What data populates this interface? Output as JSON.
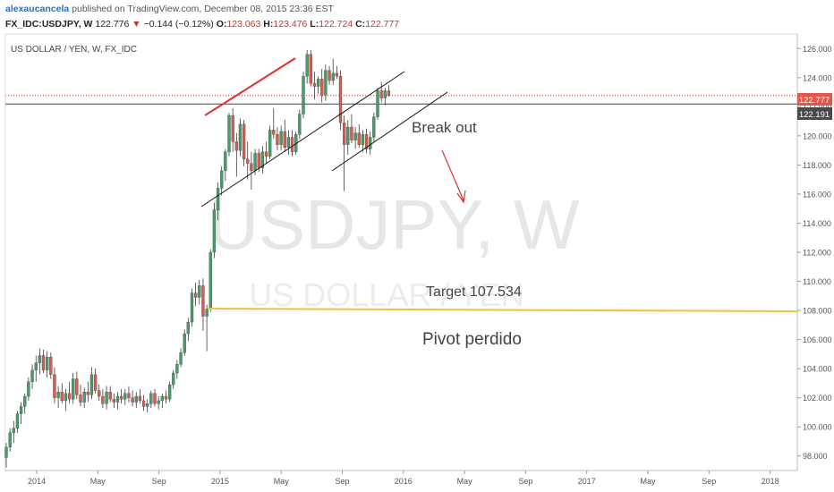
{
  "header": {
    "author": "alexaucancela",
    "published_text": "published on TradingView.com, December 08, 2015 23:36 EST",
    "symbol": "FX_IDC:USDJPY, W",
    "last": "122.776",
    "change_arrow": "▼",
    "change": "−0.144 (−0.12%)",
    "open_label": "O:",
    "open": "123.063",
    "high_label": "H:",
    "high": "123.476",
    "low_label": "L:",
    "low": "122.724",
    "close_label": "C:",
    "close": "122.777"
  },
  "pane_title": "US DOLLAR / YEN, W, FX_IDC",
  "watermark": {
    "symbol": "USDJPY, W",
    "name": "US DOLLAR / YEN"
  },
  "annotations": {
    "breakout": "Break out",
    "target": "Target 107.534",
    "pivot": "Pivot perdido"
  },
  "price_tags": {
    "last": "122.777",
    "reference": "122.191"
  },
  "colors": {
    "up": "#4a9a6a",
    "down": "#d85b52",
    "trendline": "#e0312b",
    "channel": "#111111",
    "target_line": "#f2c23a",
    "last_tag": "#e7544a",
    "reference_tag": "#4a4a4a"
  },
  "chart_data": {
    "type": "candlestick",
    "timeframe": "weekly",
    "y_axis": {
      "min": 97,
      "max": 127,
      "ticks": [
        98,
        100,
        102,
        104,
        106,
        108,
        110,
        112,
        114,
        116,
        118,
        120,
        122,
        124,
        126
      ],
      "tick_labels": [
        "98.000",
        "100.000",
        "102.000",
        "104.000",
        "106.000",
        "108.000",
        "110.000",
        "112.000",
        "114.000",
        "116.000",
        "118.000",
        "120.000",
        "122.000",
        "124.000",
        "126.000"
      ]
    },
    "x_axis": {
      "tick_labels": [
        "2014",
        "May",
        "Sep",
        "2015",
        "May",
        "Sep",
        "2016",
        "May",
        "Sep",
        "2017",
        "May",
        "Sep",
        "2018"
      ]
    },
    "candles": [
      [
        97.9,
        98.9,
        97.2,
        98.6
      ],
      [
        98.6,
        99.9,
        98.3,
        99.6
      ],
      [
        99.6,
        100.4,
        98.9,
        99.9
      ],
      [
        99.9,
        101.1,
        99.6,
        100.9
      ],
      [
        100.9,
        101.7,
        100.2,
        101.4
      ],
      [
        101.4,
        102.3,
        100.9,
        102.1
      ],
      [
        102.1,
        103.4,
        101.8,
        103.1
      ],
      [
        103.1,
        104.3,
        102.6,
        103.9
      ],
      [
        103.9,
        104.9,
        103.1,
        104.4
      ],
      [
        104.4,
        105.4,
        103.6,
        104.9
      ],
      [
        104.9,
        105.3,
        103.7,
        103.9
      ],
      [
        103.9,
        105.2,
        103.4,
        104.8
      ],
      [
        104.8,
        105.1,
        103.3,
        103.6
      ],
      [
        103.6,
        104.1,
        101.6,
        102.0
      ],
      [
        102.0,
        102.8,
        101.3,
        102.4
      ],
      [
        102.4,
        103.0,
        101.6,
        101.8
      ],
      [
        101.8,
        102.6,
        101.1,
        102.3
      ],
      [
        102.3,
        103.1,
        101.6,
        101.9
      ],
      [
        101.9,
        103.7,
        101.6,
        103.3
      ],
      [
        103.3,
        103.8,
        101.9,
        102.2
      ],
      [
        102.2,
        102.9,
        101.4,
        101.7
      ],
      [
        101.7,
        102.7,
        101.3,
        102.4
      ],
      [
        102.4,
        103.1,
        101.7,
        102.2
      ],
      [
        102.2,
        104.1,
        101.9,
        103.6
      ],
      [
        103.6,
        104.0,
        102.3,
        102.5
      ],
      [
        102.5,
        102.9,
        101.8,
        102.1
      ],
      [
        102.1,
        102.6,
        101.3,
        101.6
      ],
      [
        101.6,
        102.8,
        101.2,
        102.4
      ],
      [
        102.4,
        102.8,
        101.7,
        101.9
      ],
      [
        101.9,
        102.3,
        101.3,
        101.7
      ],
      [
        101.7,
        102.4,
        101.2,
        102.1
      ],
      [
        102.1,
        102.6,
        101.6,
        101.9
      ],
      [
        101.9,
        102.6,
        101.5,
        102.3
      ],
      [
        102.3,
        102.8,
        101.7,
        102.0
      ],
      [
        102.0,
        102.5,
        101.4,
        101.7
      ],
      [
        101.7,
        102.4,
        101.3,
        102.1
      ],
      [
        102.1,
        102.6,
        101.6,
        101.8
      ],
      [
        101.8,
        102.2,
        101.1,
        101.4
      ],
      [
        101.4,
        101.9,
        101.0,
        101.6
      ],
      [
        101.6,
        102.5,
        101.3,
        102.3
      ],
      [
        102.3,
        102.6,
        101.4,
        101.6
      ],
      [
        101.6,
        102.1,
        101.2,
        101.8
      ],
      [
        101.8,
        102.3,
        101.3,
        102.1
      ],
      [
        102.1,
        102.5,
        101.6,
        101.9
      ],
      [
        101.9,
        103.1,
        101.7,
        102.9
      ],
      [
        102.9,
        103.9,
        102.6,
        103.7
      ],
      [
        103.7,
        104.6,
        103.3,
        104.3
      ],
      [
        104.3,
        105.4,
        104.1,
        105.1
      ],
      [
        105.1,
        106.7,
        104.9,
        106.4
      ],
      [
        106.4,
        107.5,
        105.9,
        107.2
      ],
      [
        107.2,
        109.5,
        106.9,
        109.2
      ],
      [
        109.2,
        109.9,
        108.3,
        108.9
      ],
      [
        108.9,
        110.1,
        108.4,
        109.7
      ],
      [
        109.7,
        110.2,
        106.6,
        107.6
      ],
      [
        107.6,
        108.4,
        105.2,
        108.1
      ],
      [
        108.1,
        112.2,
        107.9,
        112.0
      ],
      [
        112.0,
        115.4,
        111.6,
        114.9
      ],
      [
        114.9,
        116.8,
        114.2,
        116.4
      ],
      [
        116.4,
        117.9,
        115.9,
        117.6
      ],
      [
        117.6,
        119.1,
        116.9,
        118.9
      ],
      [
        118.9,
        121.6,
        118.6,
        121.4
      ],
      [
        121.4,
        121.9,
        118.9,
        119.6
      ],
      [
        119.6,
        120.2,
        117.2,
        119.0
      ],
      [
        119.0,
        121.2,
        118.6,
        120.8
      ],
      [
        120.8,
        121.1,
        117.9,
        118.4
      ],
      [
        118.4,
        119.6,
        117.0,
        118.1
      ],
      [
        118.1,
        118.9,
        116.3,
        117.6
      ],
      [
        117.6,
        119.1,
        117.3,
        118.8
      ],
      [
        118.8,
        119.1,
        117.5,
        117.8
      ],
      [
        117.8,
        119.3,
        117.4,
        118.9
      ],
      [
        118.9,
        119.6,
        118.1,
        118.6
      ],
      [
        118.6,
        120.7,
        118.4,
        120.4
      ],
      [
        120.4,
        121.9,
        119.8,
        120.1
      ],
      [
        120.1,
        120.6,
        119.0,
        119.4
      ],
      [
        119.4,
        120.7,
        119.0,
        120.3
      ],
      [
        120.3,
        121.1,
        118.9,
        119.2
      ],
      [
        119.2,
        120.4,
        118.7,
        119.9
      ],
      [
        119.9,
        120.4,
        118.6,
        118.9
      ],
      [
        118.9,
        120.3,
        118.7,
        120.1
      ],
      [
        120.1,
        121.8,
        119.8,
        121.5
      ],
      [
        121.5,
        124.4,
        121.2,
        124.1
      ],
      [
        124.1,
        125.9,
        123.6,
        125.6
      ],
      [
        125.6,
        125.9,
        123.4,
        123.6
      ],
      [
        123.6,
        124.4,
        122.5,
        123.4
      ],
      [
        123.4,
        124.1,
        122.9,
        123.9
      ],
      [
        123.9,
        124.6,
        122.3,
        122.8
      ],
      [
        122.8,
        124.9,
        122.4,
        124.5
      ],
      [
        124.5,
        124.8,
        123.5,
        123.8
      ],
      [
        123.8,
        125.3,
        123.5,
        124.3
      ],
      [
        124.3,
        124.8,
        123.9,
        124.1
      ],
      [
        124.1,
        124.5,
        120.4,
        120.9
      ],
      [
        120.9,
        121.4,
        116.2,
        119.4
      ],
      [
        119.4,
        121.1,
        118.7,
        120.6
      ],
      [
        120.6,
        121.5,
        119.5,
        119.7
      ],
      [
        119.7,
        120.6,
        119.1,
        120.2
      ],
      [
        120.2,
        120.8,
        119.2,
        119.4
      ],
      [
        119.4,
        120.4,
        118.9,
        120.1
      ],
      [
        120.1,
        120.5,
        118.8,
        119.1
      ],
      [
        119.1,
        120.3,
        118.7,
        119.9
      ],
      [
        119.9,
        121.6,
        119.6,
        121.3
      ],
      [
        121.3,
        123.3,
        121.1,
        123.1
      ],
      [
        123.1,
        123.7,
        122.3,
        122.6
      ],
      [
        122.6,
        123.3,
        122.1,
        123.1
      ],
      [
        123.1,
        123.5,
        122.7,
        122.8
      ]
    ],
    "horizontal_levels": [
      {
        "price": 122.777,
        "label": "122.777"
      },
      {
        "price": 122.191,
        "label": "122.191"
      },
      {
        "price": 107.534,
        "label": "Target 107.534"
      }
    ]
  }
}
